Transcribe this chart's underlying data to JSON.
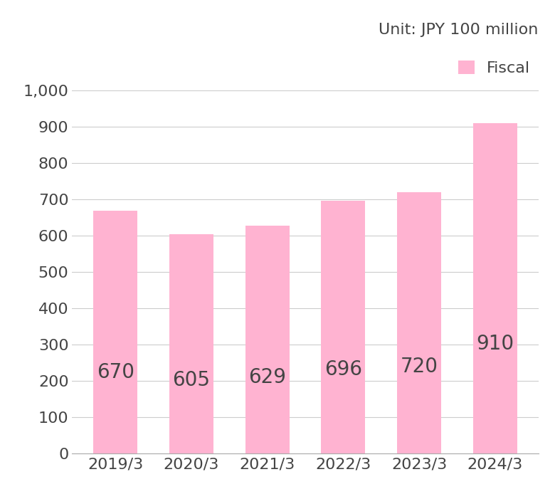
{
  "categories": [
    "2019/3",
    "2020/3",
    "2021/3",
    "2022/3",
    "2023/3",
    "2024/3"
  ],
  "values": [
    670,
    605,
    629,
    696,
    720,
    910
  ],
  "bar_color": "#FFB3D1",
  "bar_edgecolor": "none",
  "label_color": "#444444",
  "unit_text": "Unit: JPY 100 million",
  "legend_label": "Fiscal",
  "ylim": [
    0,
    1000
  ],
  "yticks": [
    0,
    100,
    200,
    300,
    400,
    500,
    600,
    700,
    800,
    900,
    1000
  ],
  "background_color": "#ffffff",
  "grid_color": "#cccccc",
  "bar_label_fontsize": 20,
  "tick_fontsize": 16,
  "unit_fontsize": 16,
  "legend_fontsize": 16
}
